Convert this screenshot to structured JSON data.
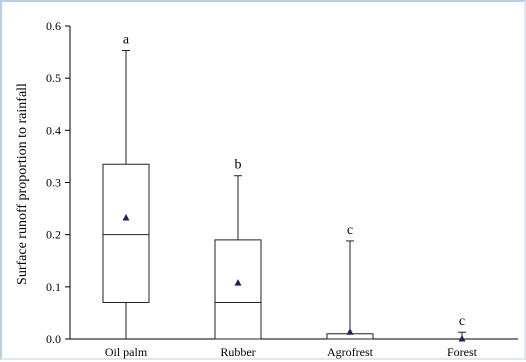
{
  "chart_data": {
    "type": "box",
    "title": "",
    "xlabel": "",
    "ylabel": "Surface runoff proportion to rainfall",
    "ylim": [
      0,
      0.6
    ],
    "yticks": [
      "0.0",
      "0.1",
      "0.2",
      "0.3",
      "0.4",
      "0.5",
      "0.6"
    ],
    "grid": false,
    "legend": "none",
    "categories": [
      "Oil palm",
      "Rubber",
      "Agrofrest",
      "Forest"
    ],
    "series": [
      {
        "boxes": [
          {
            "min": 0.0,
            "q1": 0.07,
            "median": 0.2,
            "q3": 0.335,
            "max": 0.553,
            "mean": 0.232,
            "group": "a"
          },
          {
            "min": 0.0,
            "q1": 0.0,
            "median": 0.07,
            "q3": 0.19,
            "max": 0.313,
            "mean": 0.107,
            "group": "b"
          },
          {
            "min": 0.0,
            "q1": 0.0,
            "median": 0.0,
            "q3": 0.01,
            "max": 0.188,
            "mean": 0.013,
            "group": "c"
          },
          {
            "min": 0.0,
            "q1": 0.0,
            "median": 0.0,
            "q3": 0.0,
            "max": 0.013,
            "mean": 0.0,
            "group": "c"
          }
        ]
      }
    ],
    "colors": {
      "box_stroke": "#222222",
      "mean_marker": "#2a1a66",
      "axis": "#000000"
    }
  }
}
